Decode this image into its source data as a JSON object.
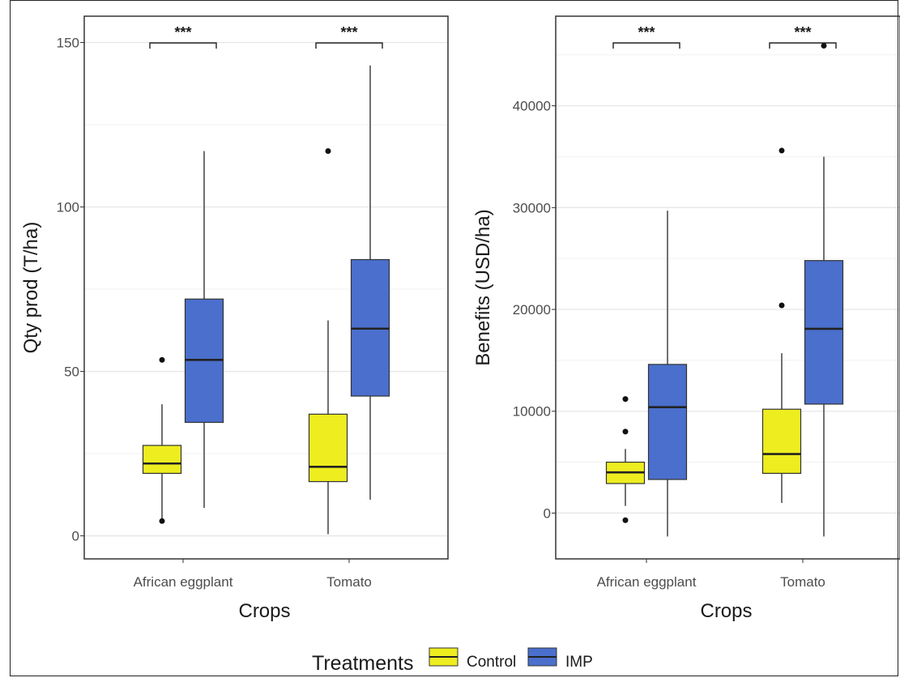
{
  "chart_data": [
    {
      "type": "boxplot",
      "xlabel": "Crops",
      "ylabel": "Qty prod (T/ha)",
      "categories": [
        "African eggplant",
        "Tomato"
      ],
      "ylim": [
        -7,
        158
      ],
      "yticks": [
        0,
        50,
        100,
        150
      ],
      "grid": true,
      "significance": [
        "***",
        "***"
      ],
      "series": [
        {
          "name": "Control",
          "color": "#eded20",
          "boxes": [
            {
              "whisker_low": 5,
              "q1": 19,
              "median": 22,
              "q3": 27.5,
              "whisker_high": 40,
              "outliers": [
                4.5,
                53.5
              ]
            },
            {
              "whisker_low": 0.5,
              "q1": 16.5,
              "median": 21,
              "q3": 37,
              "whisker_high": 65.5,
              "outliers": [
                117
              ]
            }
          ]
        },
        {
          "name": "IMP",
          "color": "#4a6fcc",
          "boxes": [
            {
              "whisker_low": 8.5,
              "q1": 34.5,
              "median": 53.5,
              "q3": 72,
              "whisker_high": 117,
              "outliers": []
            },
            {
              "whisker_low": 11,
              "q1": 42.5,
              "median": 63,
              "q3": 84,
              "whisker_high": 143,
              "outliers": []
            }
          ]
        }
      ]
    },
    {
      "type": "boxplot",
      "xlabel": "Crops",
      "ylabel": "Benefits (USD/ha)",
      "categories": [
        "African eggplant",
        "Tomato"
      ],
      "ylim": [
        -4500,
        48800
      ],
      "yticks": [
        0,
        10000,
        20000,
        30000,
        40000
      ],
      "grid": true,
      "significance": [
        "***",
        "***"
      ],
      "series": [
        {
          "name": "Control",
          "color": "#eded20",
          "boxes": [
            {
              "whisker_low": 700,
              "q1": 2900,
              "median": 4000,
              "q3": 5000,
              "whisker_high": 6300,
              "outliers": [
                -700,
                8000,
                11200
              ]
            },
            {
              "whisker_low": 1000,
              "q1": 3900,
              "median": 5800,
              "q3": 10200,
              "whisker_high": 15700,
              "outliers": [
                20400,
                35600
              ]
            }
          ]
        },
        {
          "name": "IMP",
          "color": "#4a6fcc",
          "boxes": [
            {
              "whisker_low": -2300,
              "q1": 3300,
              "median": 10400,
              "q3": 14600,
              "whisker_high": 29700,
              "outliers": []
            },
            {
              "whisker_low": -2300,
              "q1": 10700,
              "median": 18100,
              "q3": 24800,
              "whisker_high": 35000,
              "outliers": [
                45900
              ]
            }
          ]
        }
      ]
    }
  ],
  "legend": {
    "title": "Treatments",
    "items": [
      {
        "label": "Control",
        "color": "#eded20"
      },
      {
        "label": "IMP",
        "color": "#4a6fcc"
      }
    ]
  }
}
